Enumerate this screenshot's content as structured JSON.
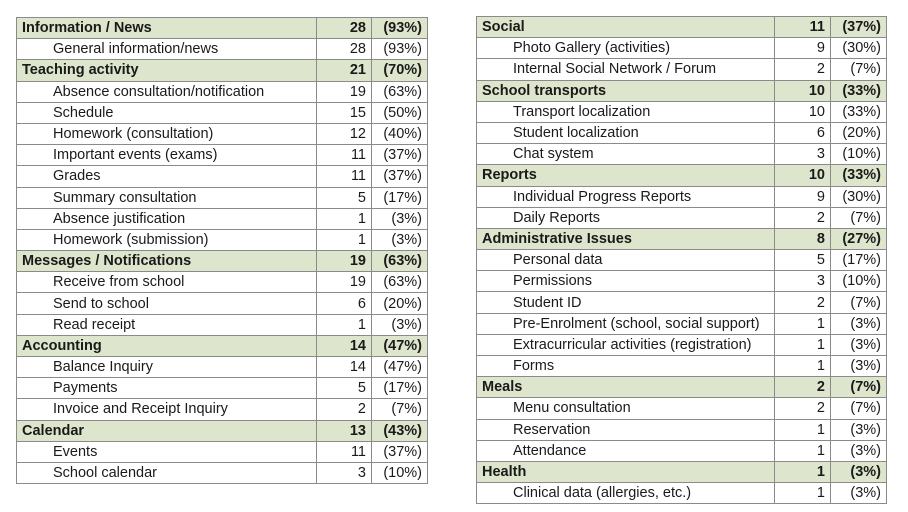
{
  "left_table": [
    {
      "label": "Information / News",
      "count": "28",
      "pct": "(93%)",
      "items": [
        {
          "label": "General information/news",
          "count": "28",
          "pct": "(93%)"
        }
      ]
    },
    {
      "label": "Teaching activity",
      "count": "21",
      "pct": "(70%)",
      "items": [
        {
          "label": "Absence consultation/notification",
          "count": "19",
          "pct": "(63%)"
        },
        {
          "label": "Schedule",
          "count": "15",
          "pct": "(50%)"
        },
        {
          "label": "Homework (consultation)",
          "count": "12",
          "pct": "(40%)"
        },
        {
          "label": "Important events (exams)",
          "count": "11",
          "pct": "(37%)"
        },
        {
          "label": "Grades",
          "count": "11",
          "pct": "(37%)"
        },
        {
          "label": "Summary consultation",
          "count": "5",
          "pct": "(17%)"
        },
        {
          "label": "Absence justification",
          "count": "1",
          "pct": "(3%)"
        },
        {
          "label": "Homework (submission)",
          "count": "1",
          "pct": "(3%)"
        }
      ]
    },
    {
      "label": "Messages / Notifications",
      "count": "19",
      "pct": "(63%)",
      "items": [
        {
          "label": "Receive from school",
          "count": "19",
          "pct": "(63%)"
        },
        {
          "label": "Send to school",
          "count": "6",
          "pct": "(20%)"
        },
        {
          "label": "Read receipt",
          "count": "1",
          "pct": "(3%)"
        }
      ]
    },
    {
      "label": "Accounting",
      "count": "14",
      "pct": "(47%)",
      "items": [
        {
          "label": "Balance Inquiry",
          "count": "14",
          "pct": "(47%)"
        },
        {
          "label": "Payments",
          "count": "5",
          "pct": "(17%)"
        },
        {
          "label": "Invoice and Receipt Inquiry",
          "count": "2",
          "pct": "(7%)"
        }
      ]
    },
    {
      "label": "Calendar",
      "count": "13",
      "pct": "(43%)",
      "items": [
        {
          "label": "Events",
          "count": "11",
          "pct": "(37%)"
        },
        {
          "label": "School calendar",
          "count": "3",
          "pct": "(10%)"
        }
      ]
    }
  ],
  "right_table": [
    {
      "label": "Social",
      "count": "11",
      "pct": "(37%)",
      "items": [
        {
          "label": "Photo Gallery (activities)",
          "count": "9",
          "pct": "(30%)"
        },
        {
          "label": "Internal Social Network / Forum",
          "count": "2",
          "pct": "(7%)"
        }
      ]
    },
    {
      "label": "School transports",
      "count": "10",
      "pct": "(33%)",
      "items": [
        {
          "label": "Transport localization",
          "count": "10",
          "pct": "(33%)"
        },
        {
          "label": "Student localization",
          "count": "6",
          "pct": "(20%)"
        },
        {
          "label": "Chat system",
          "count": "3",
          "pct": "(10%)"
        }
      ]
    },
    {
      "label": "Reports",
      "count": "10",
      "pct": "(33%)",
      "items": [
        {
          "label": "Individual Progress Reports",
          "count": "9",
          "pct": "(30%)"
        },
        {
          "label": "Daily Reports",
          "count": "2",
          "pct": "(7%)"
        }
      ]
    },
    {
      "label": "Administrative Issues",
      "count": "8",
      "pct": "(27%)",
      "items": [
        {
          "label": "Personal data",
          "count": "5",
          "pct": "(17%)"
        },
        {
          "label": "Permissions",
          "count": "3",
          "pct": "(10%)"
        },
        {
          "label": "Student ID",
          "count": "2",
          "pct": "(7%)"
        },
        {
          "label": "Pre-Enrolment (school, social support)",
          "count": "1",
          "pct": "(3%)"
        },
        {
          "label": "Extracurricular activities (registration)",
          "count": "1",
          "pct": "(3%)"
        },
        {
          "label": "Forms",
          "count": "1",
          "pct": "(3%)"
        }
      ]
    },
    {
      "label": "Meals",
      "count": "2",
      "pct": "(7%)",
      "items": [
        {
          "label": "Menu consultation",
          "count": "2",
          "pct": "(7%)"
        },
        {
          "label": "Reservation",
          "count": "1",
          "pct": "(3%)"
        },
        {
          "label": "Attendance",
          "count": "1",
          "pct": "(3%)"
        }
      ]
    },
    {
      "label": "Health",
      "count": "1",
      "pct": "(3%)",
      "items": [
        {
          "label": "Clinical data (allergies, etc.)",
          "count": "1",
          "pct": "(3%)"
        }
      ]
    }
  ],
  "colors": {
    "category_bg": "#dde6cc",
    "border": "#8a8a8a"
  }
}
